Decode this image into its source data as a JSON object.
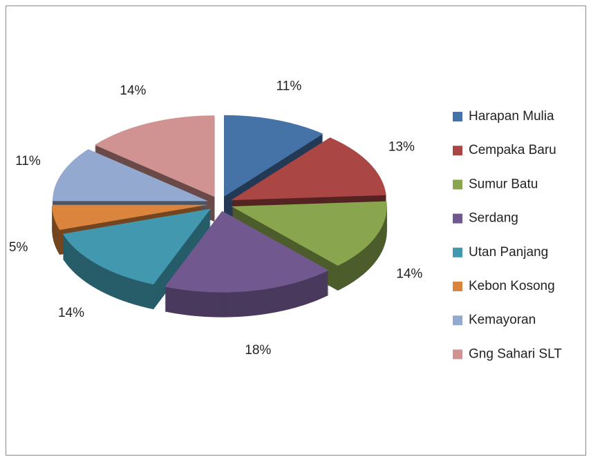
{
  "chart_data": {
    "type": "pie",
    "categories": [
      "Harapan Mulia",
      "Cempaka Baru",
      "Sumur Batu",
      "Serdang",
      "Utan Panjang",
      "Kebon Kosong",
      "Kemayoran",
      "Gng Sahari SLT"
    ],
    "values": [
      11,
      13,
      14,
      18,
      14,
      5,
      11,
      14
    ],
    "value_labels": [
      "11%",
      "13%",
      "14%",
      "18%",
      "14%",
      "5%",
      "11%",
      "14%"
    ],
    "colors": [
      "#4572A7",
      "#AA4643",
      "#89A54E",
      "#71588F",
      "#4198AF",
      "#DB843D",
      "#93A9CF",
      "#D19392"
    ],
    "legend": "right"
  }
}
